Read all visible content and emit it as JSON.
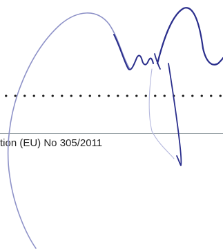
{
  "document": {
    "regulation_text": "tion (EU) No 305/2011"
  },
  "signature": {
    "icon": "handwritten-signature",
    "ink_color": "#2a2e8c",
    "ink_color_light": "#8e92c8"
  },
  "colors": {
    "rule": "#9aa4a8",
    "dots": "#1a1a1a",
    "text": "#222222"
  }
}
